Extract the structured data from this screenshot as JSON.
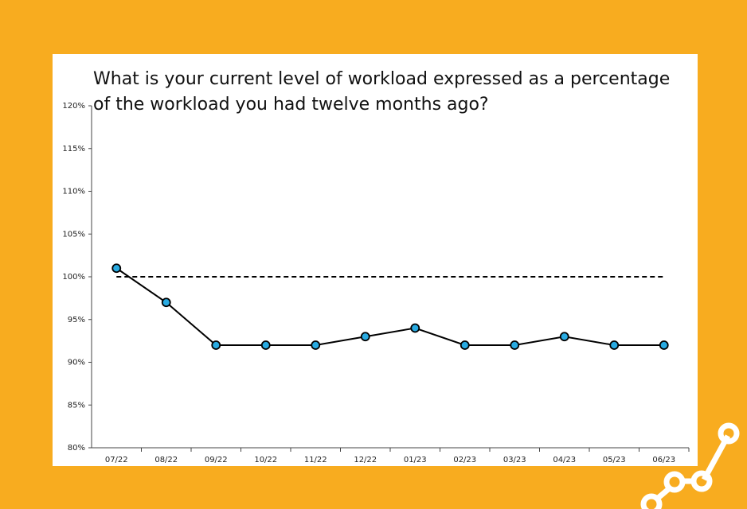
{
  "chart_data": {
    "type": "line",
    "title": "What is your current level of workload expressed as a percentage of the workload you had twelve months ago?",
    "categories": [
      "07/22",
      "08/22",
      "09/22",
      "10/22",
      "11/22",
      "12/22",
      "01/23",
      "02/23",
      "03/23",
      "04/23",
      "05/23",
      "06/23"
    ],
    "values": [
      101,
      97,
      92,
      92,
      92,
      93,
      94,
      92,
      92,
      93,
      92,
      92
    ],
    "color": "#000000",
    "marker_color": "#29abe2",
    "reference": 100,
    "reference_style": "dashed",
    "ylim": [
      80,
      120
    ],
    "yticks": [
      {
        "value": 80,
        "label": "80%"
      },
      {
        "value": 85,
        "label": "85%"
      },
      {
        "value": 90,
        "label": "90%"
      },
      {
        "value": 95,
        "label": "95%"
      },
      {
        "value": 100,
        "label": "100%"
      },
      {
        "value": 105,
        "label": "105%"
      },
      {
        "value": 110,
        "label": "110%"
      },
      {
        "value": 115,
        "label": "115%"
      },
      {
        "value": 120,
        "label": "120%"
      }
    ],
    "grid": false
  }
}
